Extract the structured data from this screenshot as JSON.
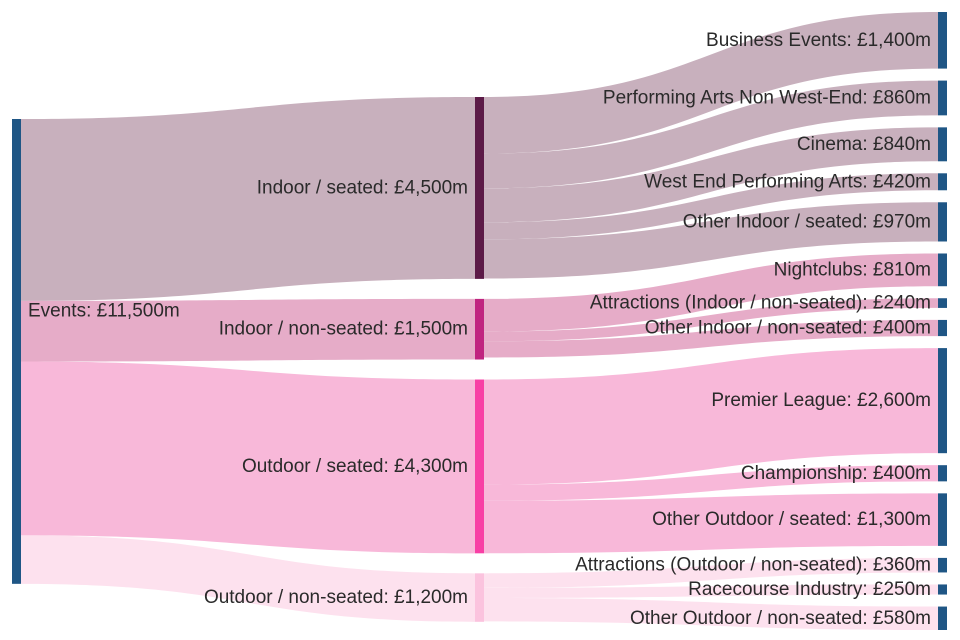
{
  "chart_data": {
    "type": "sankey",
    "unit_prefix": "£",
    "unit_suffix": "m",
    "colors": {
      "source_node": "#1f5685",
      "leaf_node": "#1f5685",
      "indoor_seated": "#5c1a47",
      "indoor_nonseated": "#c02480",
      "outdoor_seated": "#f83fa5",
      "outdoor_nonseated": "#fbc3de",
      "link_indoor_seated": "#c8b0bd",
      "link_indoor_nonseated": "#e6acc8",
      "link_outdoor_seated": "#f8b8d9",
      "link_outdoor_nonseated": "#fde1ee"
    },
    "nodes": [
      {
        "id": "events",
        "label": "Events: £11,500m",
        "value": 11500,
        "column": 0,
        "color_key": "source_node"
      },
      {
        "id": "indoor_seated",
        "label": "Indoor / seated: £4,500m",
        "value": 4500,
        "column": 1,
        "color_key": "indoor_seated"
      },
      {
        "id": "indoor_nonseated",
        "label": "Indoor / non-seated: £1,500m",
        "value": 1500,
        "column": 1,
        "color_key": "indoor_nonseated"
      },
      {
        "id": "outdoor_seated",
        "label": "Outdoor / seated: £4,300m",
        "value": 4300,
        "column": 1,
        "color_key": "outdoor_seated"
      },
      {
        "id": "outdoor_nonseated",
        "label": "Outdoor / non-seated: £1,200m",
        "value": 1200,
        "column": 1,
        "color_key": "outdoor_nonseated"
      },
      {
        "id": "business_events",
        "label": "Business Events: £1,400m",
        "value": 1400,
        "column": 2,
        "color_key": "leaf_node"
      },
      {
        "id": "performing_arts_nwe",
        "label": "Performing Arts Non West-End: £860m",
        "value": 860,
        "column": 2,
        "color_key": "leaf_node"
      },
      {
        "id": "cinema",
        "label": "Cinema: £840m",
        "value": 840,
        "column": 2,
        "color_key": "leaf_node"
      },
      {
        "id": "west_end",
        "label": "West End Performing Arts: £420m",
        "value": 420,
        "column": 2,
        "color_key": "leaf_node"
      },
      {
        "id": "other_indoor_seated",
        "label": "Other Indoor / seated: £970m",
        "value": 970,
        "column": 2,
        "color_key": "leaf_node"
      },
      {
        "id": "nightclubs",
        "label": "Nightclubs: £810m",
        "value": 810,
        "column": 2,
        "color_key": "leaf_node"
      },
      {
        "id": "attractions_indoor",
        "label": "Attractions (Indoor / non-seated): £240m",
        "value": 240,
        "column": 2,
        "color_key": "leaf_node"
      },
      {
        "id": "other_indoor_nonseated",
        "label": "Other Indoor / non-seated: £400m",
        "value": 400,
        "column": 2,
        "color_key": "leaf_node"
      },
      {
        "id": "premier_league",
        "label": "Premier League: £2,600m",
        "value": 2600,
        "column": 2,
        "color_key": "leaf_node"
      },
      {
        "id": "championship",
        "label": "Championship: £400m",
        "value": 400,
        "column": 2,
        "color_key": "leaf_node"
      },
      {
        "id": "other_outdoor_seated",
        "label": "Other Outdoor / seated: £1,300m",
        "value": 1300,
        "column": 2,
        "color_key": "leaf_node"
      },
      {
        "id": "attractions_outdoor",
        "label": "Attractions (Outdoor / non-seated): £360m",
        "value": 360,
        "column": 2,
        "color_key": "leaf_node"
      },
      {
        "id": "racecourse",
        "label": "Racecourse Industry: £250m",
        "value": 250,
        "column": 2,
        "color_key": "leaf_node"
      },
      {
        "id": "other_outdoor_nonseated",
        "label": "Other Outdoor / non-seated: £580m",
        "value": 580,
        "column": 2,
        "color_key": "leaf_node"
      }
    ],
    "links": [
      {
        "source": "events",
        "target": "indoor_seated",
        "value": 4500,
        "color_key": "link_indoor_seated"
      },
      {
        "source": "events",
        "target": "indoor_nonseated",
        "value": 1500,
        "color_key": "link_indoor_nonseated"
      },
      {
        "source": "events",
        "target": "outdoor_seated",
        "value": 4300,
        "color_key": "link_outdoor_seated"
      },
      {
        "source": "events",
        "target": "outdoor_nonseated",
        "value": 1200,
        "color_key": "link_outdoor_nonseated"
      },
      {
        "source": "indoor_seated",
        "target": "business_events",
        "value": 1400,
        "color_key": "link_indoor_seated"
      },
      {
        "source": "indoor_seated",
        "target": "performing_arts_nwe",
        "value": 860,
        "color_key": "link_indoor_seated"
      },
      {
        "source": "indoor_seated",
        "target": "cinema",
        "value": 840,
        "color_key": "link_indoor_seated"
      },
      {
        "source": "indoor_seated",
        "target": "west_end",
        "value": 420,
        "color_key": "link_indoor_seated"
      },
      {
        "source": "indoor_seated",
        "target": "other_indoor_seated",
        "value": 970,
        "color_key": "link_indoor_seated"
      },
      {
        "source": "indoor_nonseated",
        "target": "nightclubs",
        "value": 810,
        "color_key": "link_indoor_nonseated"
      },
      {
        "source": "indoor_nonseated",
        "target": "attractions_indoor",
        "value": 240,
        "color_key": "link_indoor_nonseated"
      },
      {
        "source": "indoor_nonseated",
        "target": "other_indoor_nonseated",
        "value": 400,
        "color_key": "link_indoor_nonseated"
      },
      {
        "source": "outdoor_seated",
        "target": "premier_league",
        "value": 2600,
        "color_key": "link_outdoor_seated"
      },
      {
        "source": "outdoor_seated",
        "target": "championship",
        "value": 400,
        "color_key": "link_outdoor_seated"
      },
      {
        "source": "outdoor_seated",
        "target": "other_outdoor_seated",
        "value": 1300,
        "color_key": "link_outdoor_seated"
      },
      {
        "source": "outdoor_nonseated",
        "target": "attractions_outdoor",
        "value": 360,
        "color_key": "link_outdoor_nonseated"
      },
      {
        "source": "outdoor_nonseated",
        "target": "racecourse",
        "value": 250,
        "color_key": "link_outdoor_nonseated"
      },
      {
        "source": "outdoor_nonseated",
        "target": "other_outdoor_nonseated",
        "value": 580,
        "color_key": "link_outdoor_nonseated"
      }
    ]
  }
}
